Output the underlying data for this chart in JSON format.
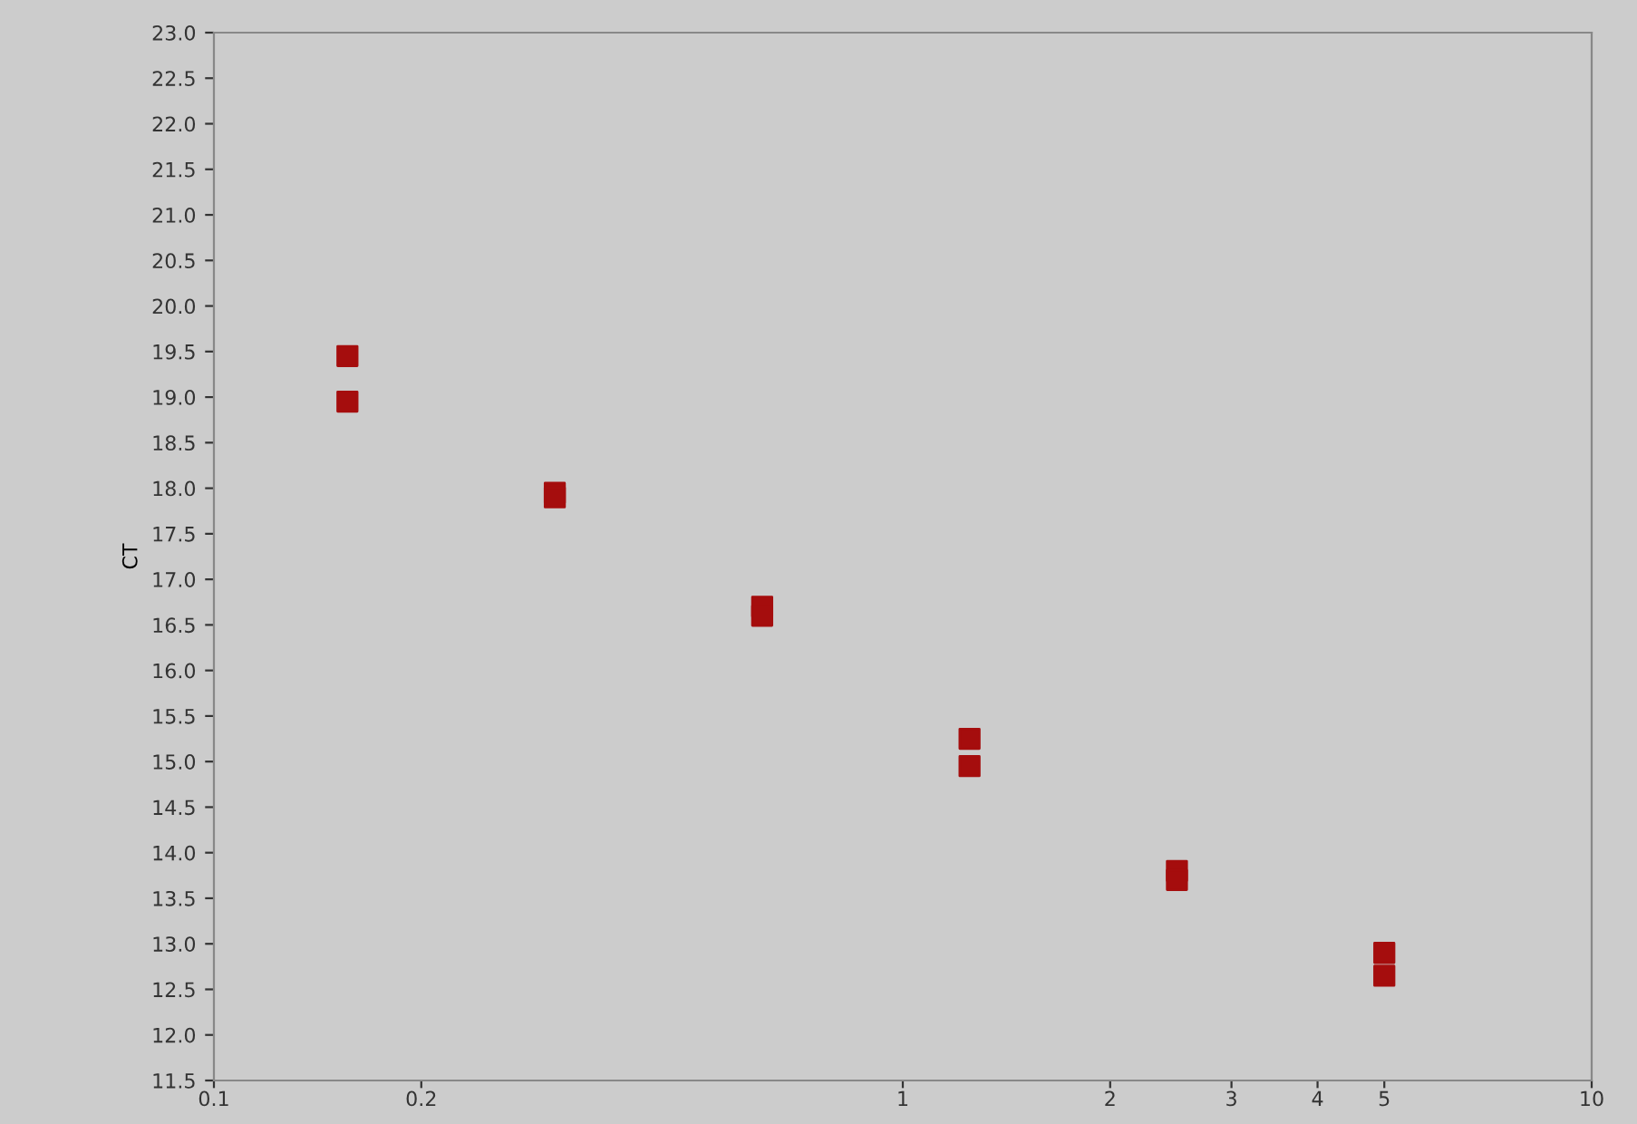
{
  "chart_data": {
    "type": "scatter",
    "ylabel": "CT",
    "marker": "square",
    "grid": false,
    "log": "x",
    "x": [
      0.15625,
      0.15625,
      0.3125,
      0.3125,
      0.625,
      0.625,
      1.25,
      1.25,
      2.5,
      2.5,
      5,
      5
    ],
    "series": [
      {
        "color": "#a50d0d",
        "values": [
          19.45,
          18.95,
          17.95,
          17.9,
          16.7,
          16.6,
          15.25,
          14.95,
          13.8,
          13.7,
          12.9,
          12.65
        ]
      }
    ],
    "xlim": [
      0.1,
      10
    ],
    "xticks": [
      0.1,
      0.2,
      1,
      2,
      3,
      4,
      5,
      10
    ],
    "ylim": [
      11.5,
      23.0
    ],
    "yticks": [
      {
        "value": 11.5,
        "label": "11.5"
      },
      {
        "value": 12,
        "label": "12.0"
      },
      {
        "value": 12.5,
        "label": "12.5"
      },
      {
        "value": 13,
        "label": "13.0"
      },
      {
        "value": 13.5,
        "label": "13.5"
      },
      {
        "value": 14,
        "label": "14.0"
      },
      {
        "value": 14.5,
        "label": "14.5"
      },
      {
        "value": 15,
        "label": "15.0"
      },
      {
        "value": 15.5,
        "label": "15.5"
      },
      {
        "value": 16,
        "label": "16.0"
      },
      {
        "value": 16.5,
        "label": "16.5"
      },
      {
        "value": 17,
        "label": "17.0"
      },
      {
        "value": 17.5,
        "label": "17.5"
      },
      {
        "value": 18,
        "label": "18.0"
      },
      {
        "value": 18.5,
        "label": "18.5"
      },
      {
        "value": 19,
        "label": "19.0"
      },
      {
        "value": 19.5,
        "label": "19.5"
      },
      {
        "value": 20,
        "label": "20.0"
      },
      {
        "value": 20.5,
        "label": "20.5"
      },
      {
        "value": 21,
        "label": "21.0"
      },
      {
        "value": 21.5,
        "label": "21.5"
      },
      {
        "value": 22,
        "label": "22.0"
      },
      {
        "value": 22.5,
        "label": "22.5"
      },
      {
        "value": 23,
        "label": "23.0"
      }
    ]
  }
}
